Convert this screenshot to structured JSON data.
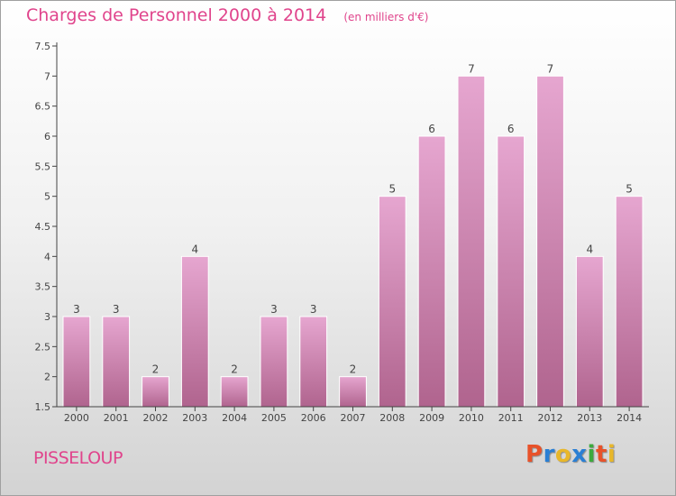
{
  "header": {
    "title": "Charges de Personnel 2000 à 2014",
    "subtitle": "(en milliers d'€)"
  },
  "footer": {
    "town": "PISSELOUP",
    "brand": "Proxiti",
    "brand_colors": [
      "#e8522a",
      "#2a7fd4",
      "#e8b72a",
      "#2a7fd4",
      "#3daa3d",
      "#e8522a",
      "#e8b72a"
    ]
  },
  "colors": {
    "accent": "#e0448c",
    "bar_top": "#e6a6d0",
    "bar_bottom": "#b0648e",
    "axis": "#444444",
    "grid": "#d8d8d8"
  },
  "chart_data": {
    "type": "bar",
    "categories": [
      "2000",
      "2001",
      "2002",
      "2003",
      "2004",
      "2005",
      "2006",
      "2007",
      "2008",
      "2009",
      "2010",
      "2011",
      "2012",
      "2013",
      "2014"
    ],
    "values": [
      3,
      3,
      2,
      4,
      2,
      3,
      3,
      2,
      5,
      6,
      7,
      6,
      7,
      4,
      5
    ],
    "data_labels": [
      "3",
      "3",
      "2",
      "4",
      "2",
      "3",
      "3",
      "2",
      "5",
      "6",
      "7",
      "6",
      "7",
      "4",
      "5"
    ],
    "ylim": [
      1.5,
      7.5
    ],
    "yticks": [
      1.5,
      2,
      2.5,
      3,
      3.5,
      4,
      4.5,
      5,
      5.5,
      6,
      6.5,
      7,
      7.5
    ],
    "ytick_labels": [
      "1.5",
      "2",
      "2.5",
      "3",
      "3.5",
      "4",
      "4.5",
      "5",
      "5.5",
      "6",
      "6.5",
      "7",
      "7.5"
    ],
    "xlabel": "",
    "ylabel": "",
    "grid": false,
    "legend": "none"
  }
}
